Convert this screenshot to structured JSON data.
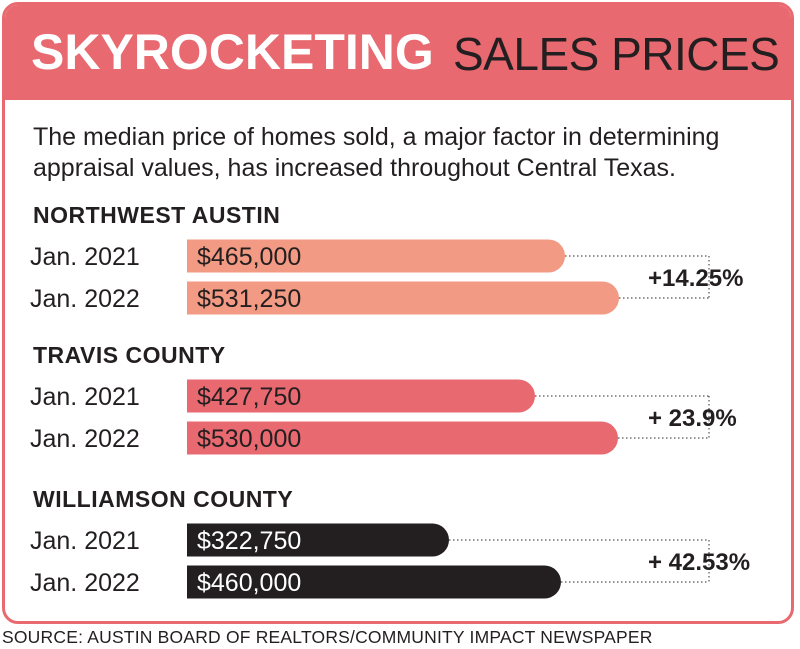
{
  "header": {
    "title_bold": "SKYROCKETING",
    "title_light": "SALES PRICES"
  },
  "subtitle": "The median price of homes sold, a major factor in determining appraisal values, has increased throughout Central Texas.",
  "source": "SOURCE: AUSTIN BOARD OF REALTORS/COMMUNITY IMPACT NEWSPAPER",
  "colors": {
    "header": "#e8696f",
    "northwest_austin": "#f29a83",
    "travis_county": "#e8696f",
    "williamson_county": "#231f20"
  },
  "chart_data": {
    "type": "bar",
    "orientation": "horizontal",
    "xlim": [
      0,
      531250
    ],
    "groups": [
      {
        "name": "NORTHWEST AUSTIN",
        "color": "#f29a83",
        "change": "+14.25%",
        "bars": [
          {
            "label": "Jan. 2021",
            "value": 465000,
            "display": "$465,000"
          },
          {
            "label": "Jan. 2022",
            "value": 531250,
            "display": "$531,250"
          }
        ]
      },
      {
        "name": "TRAVIS COUNTY",
        "color": "#e8696f",
        "change": "+ 23.9%",
        "bars": [
          {
            "label": "Jan. 2021",
            "value": 427750,
            "display": "$427,750"
          },
          {
            "label": "Jan. 2022",
            "value": 530000,
            "display": "$530,000"
          }
        ]
      },
      {
        "name": "WILLIAMSON COUNTY",
        "color": "#231f20",
        "change": "+ 42.53%",
        "bars": [
          {
            "label": "Jan. 2021",
            "value": 322750,
            "display": "$322,750"
          },
          {
            "label": "Jan. 2022",
            "value": 460000,
            "display": "$460,000"
          }
        ]
      }
    ]
  }
}
